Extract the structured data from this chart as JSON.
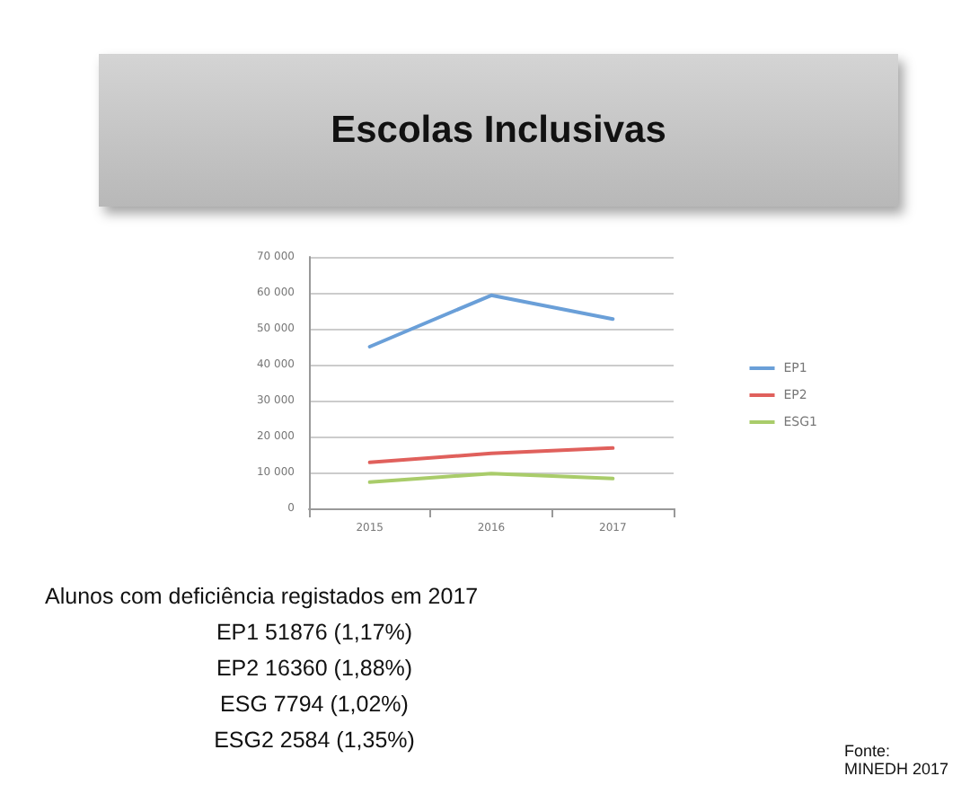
{
  "chart_data": {
    "type": "line",
    "title": "Escolas Inclusivas",
    "categories": [
      "2015",
      "2016",
      "2017"
    ],
    "series": [
      {
        "name": "EP1",
        "color": "#6a9fd8",
        "values": [
          45000,
          59300,
          52700
        ]
      },
      {
        "name": "EP2",
        "color": "#e0605c",
        "values": [
          12800,
          15300,
          16800
        ]
      },
      {
        "name": "ESG1",
        "color": "#a9cc6a",
        "values": [
          7300,
          9700,
          8300
        ]
      }
    ],
    "ylim": [
      0,
      70000
    ],
    "yticks": [
      {
        "value": 0,
        "label": "0"
      },
      {
        "value": 10000,
        "label": "10 000"
      },
      {
        "value": 20000,
        "label": "20 000"
      },
      {
        "value": 30000,
        "label": "30 000"
      },
      {
        "value": 40000,
        "label": "40 000"
      },
      {
        "value": 50000,
        "label": "50 000"
      },
      {
        "value": 60000,
        "label": "60 000"
      },
      {
        "value": 70000,
        "label": "70 000"
      }
    ],
    "grid": "y",
    "legend": "right",
    "marker": "none",
    "line_style": "solid",
    "annotations": [
      "Alunos com deficiência registados em 2017",
      "EP1 51876 (1,17%)",
      "EP2 16360 (1,88%)",
      "ESG 7794 (1,02%)",
      "ESG2 2584 (1,35%)",
      "Fonte: MINEDH 2017"
    ]
  }
}
